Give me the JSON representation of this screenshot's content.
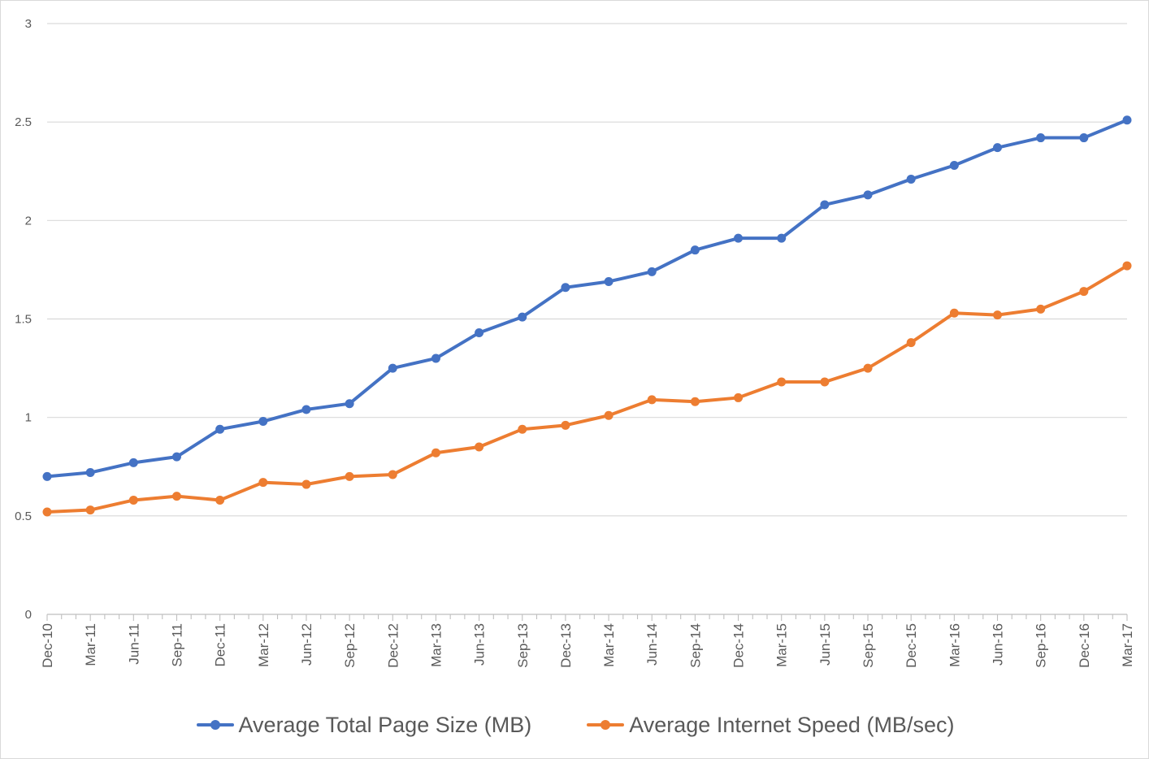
{
  "chart_data": {
    "type": "line",
    "categories": [
      "Dec-10",
      "Mar-11",
      "Jun-11",
      "Sep-11",
      "Dec-11",
      "Mar-12",
      "Jun-12",
      "Sep-12",
      "Dec-12",
      "Mar-13",
      "Jun-13",
      "Sep-13",
      "Dec-13",
      "Mar-14",
      "Jun-14",
      "Sep-14",
      "Dec-14",
      "Mar-15",
      "Jun-15",
      "Sep-15",
      "Dec-15",
      "Mar-16",
      "Jun-16",
      "Sep-16",
      "Dec-16",
      "Mar-17"
    ],
    "series": [
      {
        "name": "Average Total Page Size (MB)",
        "color": "#4472c4",
        "values": [
          0.7,
          0.72,
          0.77,
          0.8,
          0.94,
          0.98,
          1.04,
          1.07,
          1.25,
          1.3,
          1.43,
          1.51,
          1.66,
          1.69,
          1.74,
          1.85,
          1.91,
          1.91,
          2.08,
          2.13,
          2.21,
          2.28,
          2.37,
          2.42,
          2.42,
          2.51
        ]
      },
      {
        "name": "Average Internet Speed (MB/sec)",
        "color": "#ed7d31",
        "values": [
          0.52,
          0.53,
          0.58,
          0.6,
          0.58,
          0.67,
          0.66,
          0.7,
          0.71,
          0.82,
          0.85,
          0.94,
          0.96,
          1.01,
          1.09,
          1.08,
          1.1,
          1.18,
          1.18,
          1.25,
          1.38,
          1.53,
          1.52,
          1.55,
          1.64,
          1.77
        ]
      }
    ],
    "y_ticks": [
      "0",
      "0.5",
      "1",
      "1.5",
      "2",
      "2.5",
      "3"
    ],
    "ylim": [
      0,
      3
    ],
    "grid": true,
    "legend_position": "bottom"
  }
}
